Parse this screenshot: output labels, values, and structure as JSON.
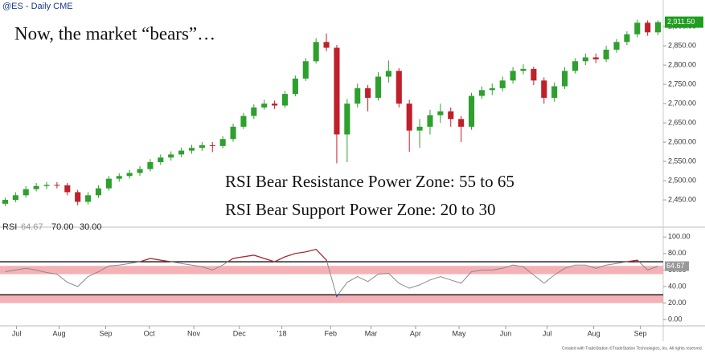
{
  "header": {
    "symbol": "@ES - Daily  CME"
  },
  "footer": "Created with TradeStation ©TradeStation Technologies, Inc. All rights reserved.",
  "chart_data": [
    {
      "type": "candlestick",
      "title": "Now, the market “bears”…",
      "annotations": [
        "RSI Bear Resistance Power Zone: 55 to 65",
        "RSI Bear Support Power Zone: 20 to 30"
      ],
      "up_color": "#2ea02e",
      "down_color": "#c0202a",
      "xlim": [
        0,
        64
      ],
      "ylim": [
        2398,
        2969
      ],
      "yticks": [
        {
          "value": 2450,
          "label": "2,450.00"
        },
        {
          "value": 2500,
          "label": "2,500.00"
        },
        {
          "value": 2550,
          "label": "2,550.00"
        },
        {
          "value": 2600,
          "label": "2,600.00"
        },
        {
          "value": 2650,
          "label": "2,650.00"
        },
        {
          "value": 2700,
          "label": "2,700.00"
        },
        {
          "value": 2750,
          "label": "2,750.00"
        },
        {
          "value": 2800,
          "label": "2,800.00"
        },
        {
          "value": 2850,
          "label": "2,850.00"
        },
        {
          "value": 2900,
          "label": "2,900.00"
        }
      ],
      "last_price": {
        "value": 2911.5,
        "label": "2,911.50"
      },
      "last_price_color": "#1f9e1f",
      "ohlc": [
        [
          2440,
          2456,
          2434,
          2450
        ],
        [
          2450,
          2470,
          2444,
          2462
        ],
        [
          2462,
          2486,
          2456,
          2478
        ],
        [
          2478,
          2494,
          2472,
          2486
        ],
        [
          2486,
          2497,
          2478,
          2489
        ],
        [
          2489,
          2496,
          2480,
          2488
        ],
        [
          2488,
          2494,
          2462,
          2470
        ],
        [
          2470,
          2476,
          2436,
          2445
        ],
        [
          2445,
          2470,
          2438,
          2462
        ],
        [
          2462,
          2488,
          2455,
          2480
        ],
        [
          2480,
          2512,
          2474,
          2505
        ],
        [
          2505,
          2519,
          2497,
          2512
        ],
        [
          2512,
          2528,
          2505,
          2520
        ],
        [
          2520,
          2538,
          2512,
          2530
        ],
        [
          2530,
          2556,
          2524,
          2548
        ],
        [
          2548,
          2568,
          2541,
          2560
        ],
        [
          2560,
          2576,
          2552,
          2568
        ],
        [
          2568,
          2586,
          2561,
          2578
        ],
        [
          2578,
          2593,
          2570,
          2585
        ],
        [
          2585,
          2600,
          2577,
          2592
        ],
        [
          2592,
          2600,
          2574,
          2590
        ],
        [
          2590,
          2616,
          2584,
          2608
        ],
        [
          2608,
          2648,
          2601,
          2640
        ],
        [
          2640,
          2676,
          2634,
          2668
        ],
        [
          2668,
          2698,
          2660,
          2690
        ],
        [
          2690,
          2710,
          2684,
          2700
        ],
        [
          2700,
          2708,
          2686,
          2695
        ],
        [
          2695,
          2733,
          2689,
          2725
        ],
        [
          2725,
          2773,
          2719,
          2765
        ],
        [
          2765,
          2818,
          2759,
          2810
        ],
        [
          2810,
          2870,
          2804,
          2860
        ],
        [
          2860,
          2882,
          2836,
          2845
        ],
        [
          2845,
          2852,
          2545,
          2620
        ],
        [
          2620,
          2712,
          2548,
          2700
        ],
        [
          2700,
          2752,
          2690,
          2740
        ],
        [
          2740,
          2748,
          2680,
          2715
        ],
        [
          2715,
          2782,
          2708,
          2770
        ],
        [
          2770,
          2812,
          2755,
          2785
        ],
        [
          2785,
          2792,
          2690,
          2700
        ],
        [
          2700,
          2710,
          2575,
          2630
        ],
        [
          2630,
          2660,
          2585,
          2640
        ],
        [
          2640,
          2684,
          2620,
          2670
        ],
        [
          2670,
          2700,
          2650,
          2680
        ],
        [
          2680,
          2690,
          2640,
          2660
        ],
        [
          2660,
          2668,
          2600,
          2640
        ],
        [
          2640,
          2728,
          2632,
          2720
        ],
        [
          2720,
          2745,
          2712,
          2735
        ],
        [
          2735,
          2752,
          2722,
          2740
        ],
        [
          2740,
          2770,
          2732,
          2760
        ],
        [
          2760,
          2795,
          2752,
          2785
        ],
        [
          2785,
          2802,
          2776,
          2790
        ],
        [
          2790,
          2796,
          2748,
          2760
        ],
        [
          2760,
          2768,
          2700,
          2715
        ],
        [
          2715,
          2755,
          2705,
          2745
        ],
        [
          2745,
          2795,
          2738,
          2785
        ],
        [
          2785,
          2818,
          2778,
          2810
        ],
        [
          2810,
          2830,
          2800,
          2820
        ],
        [
          2820,
          2830,
          2805,
          2815
        ],
        [
          2815,
          2850,
          2808,
          2840
        ],
        [
          2840,
          2868,
          2832,
          2860
        ],
        [
          2860,
          2888,
          2852,
          2880
        ],
        [
          2880,
          2918,
          2872,
          2910
        ],
        [
          2910,
          2916,
          2876,
          2885
        ],
        [
          2885,
          2916,
          2878,
          2911.5
        ]
      ]
    },
    {
      "type": "line",
      "name": "RSI",
      "current": 64.67,
      "color": "#8a8a8a",
      "above_color": "#b0222c",
      "below_color": "#2a3fb0",
      "levels": [
        {
          "value": 70,
          "label": "70.00"
        },
        {
          "value": 30,
          "label": "30.00"
        }
      ],
      "zones": [
        [
          55,
          65
        ],
        [
          20,
          30
        ]
      ],
      "zone_color": "#f3a3a8",
      "xlim": [
        0,
        64
      ],
      "xticks": [
        {
          "value": 1.6,
          "label": "Jul"
        },
        {
          "value": 5.7,
          "label": "Aug"
        },
        {
          "value": 10.2,
          "label": "Sep"
        },
        {
          "value": 14.4,
          "label": "Oct"
        },
        {
          "value": 18.7,
          "label": "Nov"
        },
        {
          "value": 23.1,
          "label": "Dec"
        },
        {
          "value": 27.2,
          "label": "'18"
        },
        {
          "value": 31.9,
          "label": "Feb"
        },
        {
          "value": 35.8,
          "label": "Mar"
        },
        {
          "value": 40.1,
          "label": "Apr"
        },
        {
          "value": 44.3,
          "label": "May"
        },
        {
          "value": 48.8,
          "label": "Jun"
        },
        {
          "value": 52.8,
          "label": "Jul"
        },
        {
          "value": 57.3,
          "label": "Aug"
        },
        {
          "value": 61.8,
          "label": "Sep"
        }
      ],
      "ylim": [
        -11.5,
        108
      ],
      "yticks": [
        {
          "value": 0,
          "label": "0.00"
        },
        {
          "value": 20,
          "label": "20.00"
        },
        {
          "value": 40,
          "label": "40.00"
        },
        {
          "value": 60,
          "label": "60.00"
        },
        {
          "value": 80,
          "label": "80.00"
        },
        {
          "value": 100,
          "label": "100.00"
        }
      ],
      "values": [
        58,
        60,
        62,
        60,
        57,
        55,
        45,
        40,
        52,
        58,
        65,
        66,
        68,
        70,
        74,
        72,
        70,
        68,
        66,
        64,
        60,
        66,
        74,
        76,
        78,
        74,
        70,
        76,
        80,
        82,
        85,
        72,
        28,
        45,
        52,
        46,
        55,
        56,
        44,
        38,
        42,
        48,
        52,
        48,
        44,
        58,
        60,
        60,
        62,
        66,
        64,
        54,
        44,
        54,
        62,
        66,
        66,
        62,
        66,
        68,
        70,
        72,
        60,
        64.67
      ]
    }
  ]
}
